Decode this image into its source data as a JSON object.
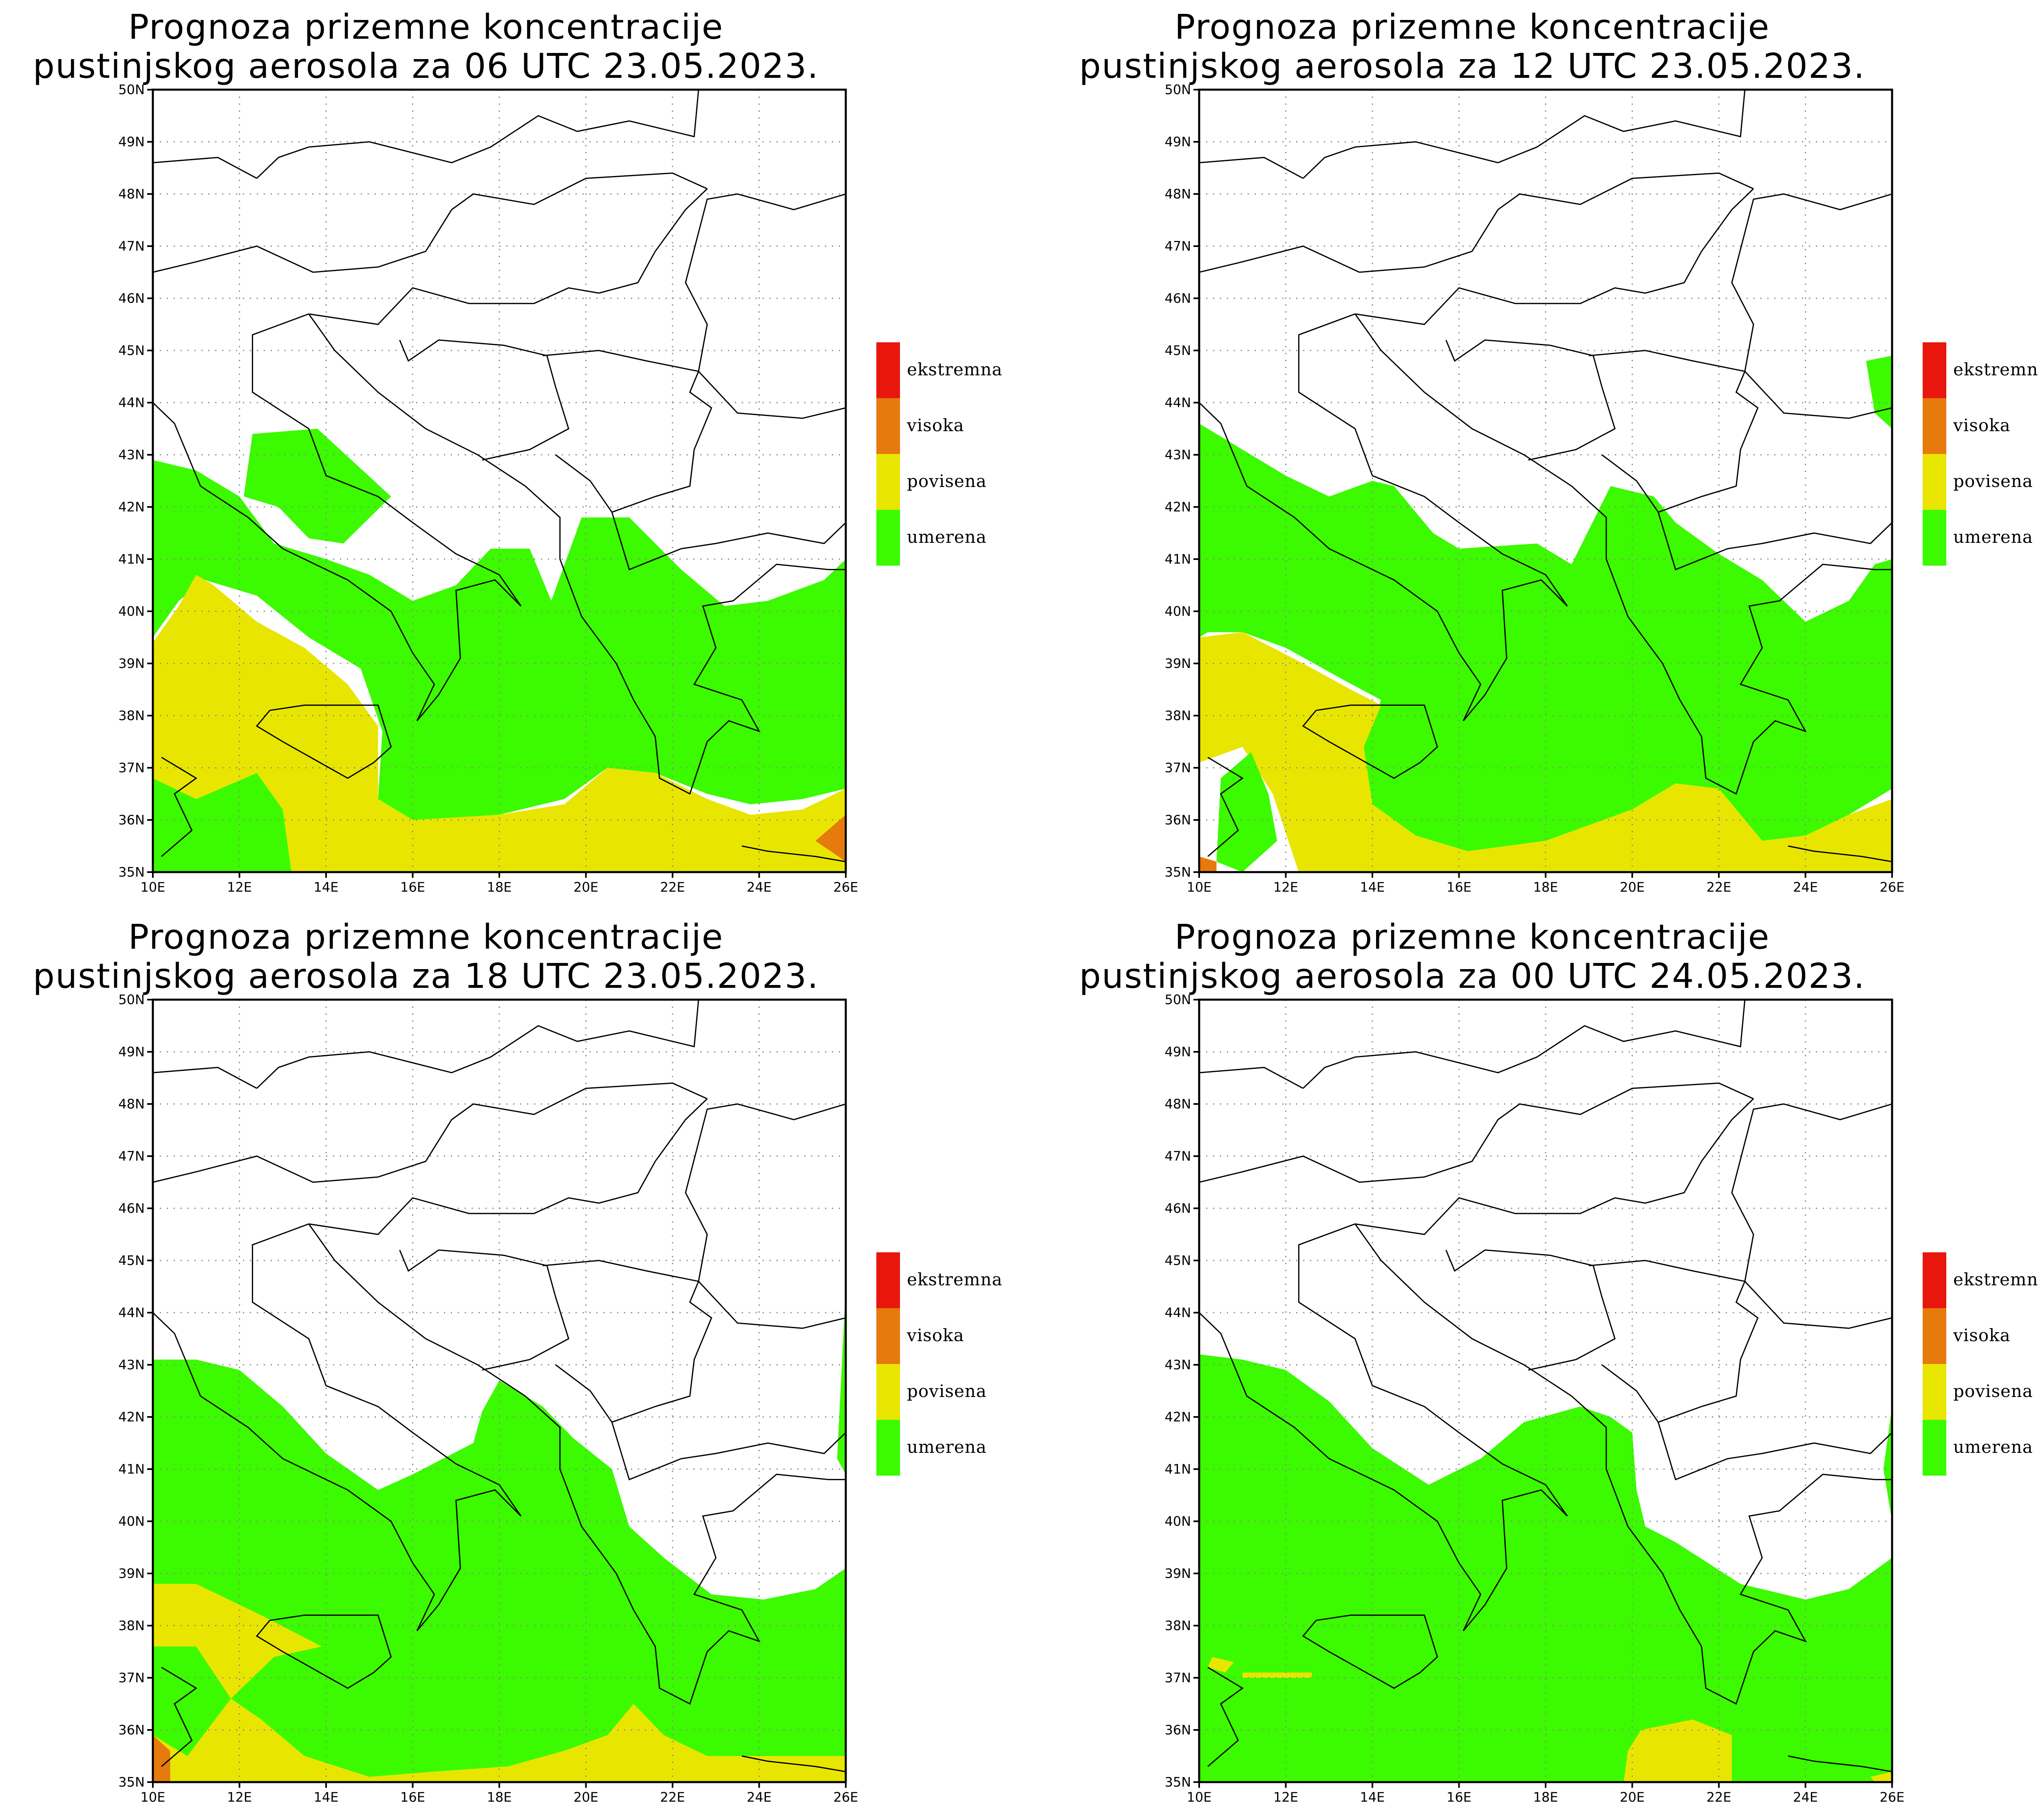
{
  "panels": [
    {
      "title_line1": "Prognoza prizemne koncentracije",
      "title_line2": "pustinjskog aerosola za 06 UTC 23.05.2023."
    },
    {
      "title_line1": "Prognoza prizemne koncentracije",
      "title_line2": "pustinjskog aerosola za 12 UTC 23.05.2023."
    },
    {
      "title_line1": "Prognoza prizemne koncentracije",
      "title_line2": "pustinjskog aerosola za 18 UTC 23.05.2023."
    },
    {
      "title_line1": "Prognoza prizemne koncentracije",
      "title_line2": "pustinjskog aerosola za 00 UTC 24.05.2023."
    }
  ],
  "axes": {
    "lat_labels": [
      "50N",
      "49N",
      "48N",
      "47N",
      "46N",
      "45N",
      "44N",
      "43N",
      "42N",
      "41N",
      "40N",
      "39N",
      "38N",
      "37N",
      "36N",
      "35N"
    ],
    "lon_labels": [
      "10E",
      "12E",
      "14E",
      "16E",
      "18E",
      "20E",
      "22E",
      "24E",
      "26E"
    ],
    "lat_range": [
      35,
      50
    ],
    "lon_range": [
      10,
      26
    ],
    "grid": "dotted"
  },
  "legend": [
    {
      "label": "ekstremna",
      "color": "#e8160c"
    },
    {
      "label": "visoka",
      "color": "#e67a0c"
    },
    {
      "label": "povisena",
      "color": "#e8e600"
    },
    {
      "label": "umerena",
      "color": "#3cfa00"
    }
  ],
  "colors": {
    "umerena": "#3cfa00",
    "povisena": "#e8e600",
    "visoka": "#e67a0c",
    "ekstremna": "#e8160c",
    "border": "#000000",
    "grid": "#888888"
  }
}
